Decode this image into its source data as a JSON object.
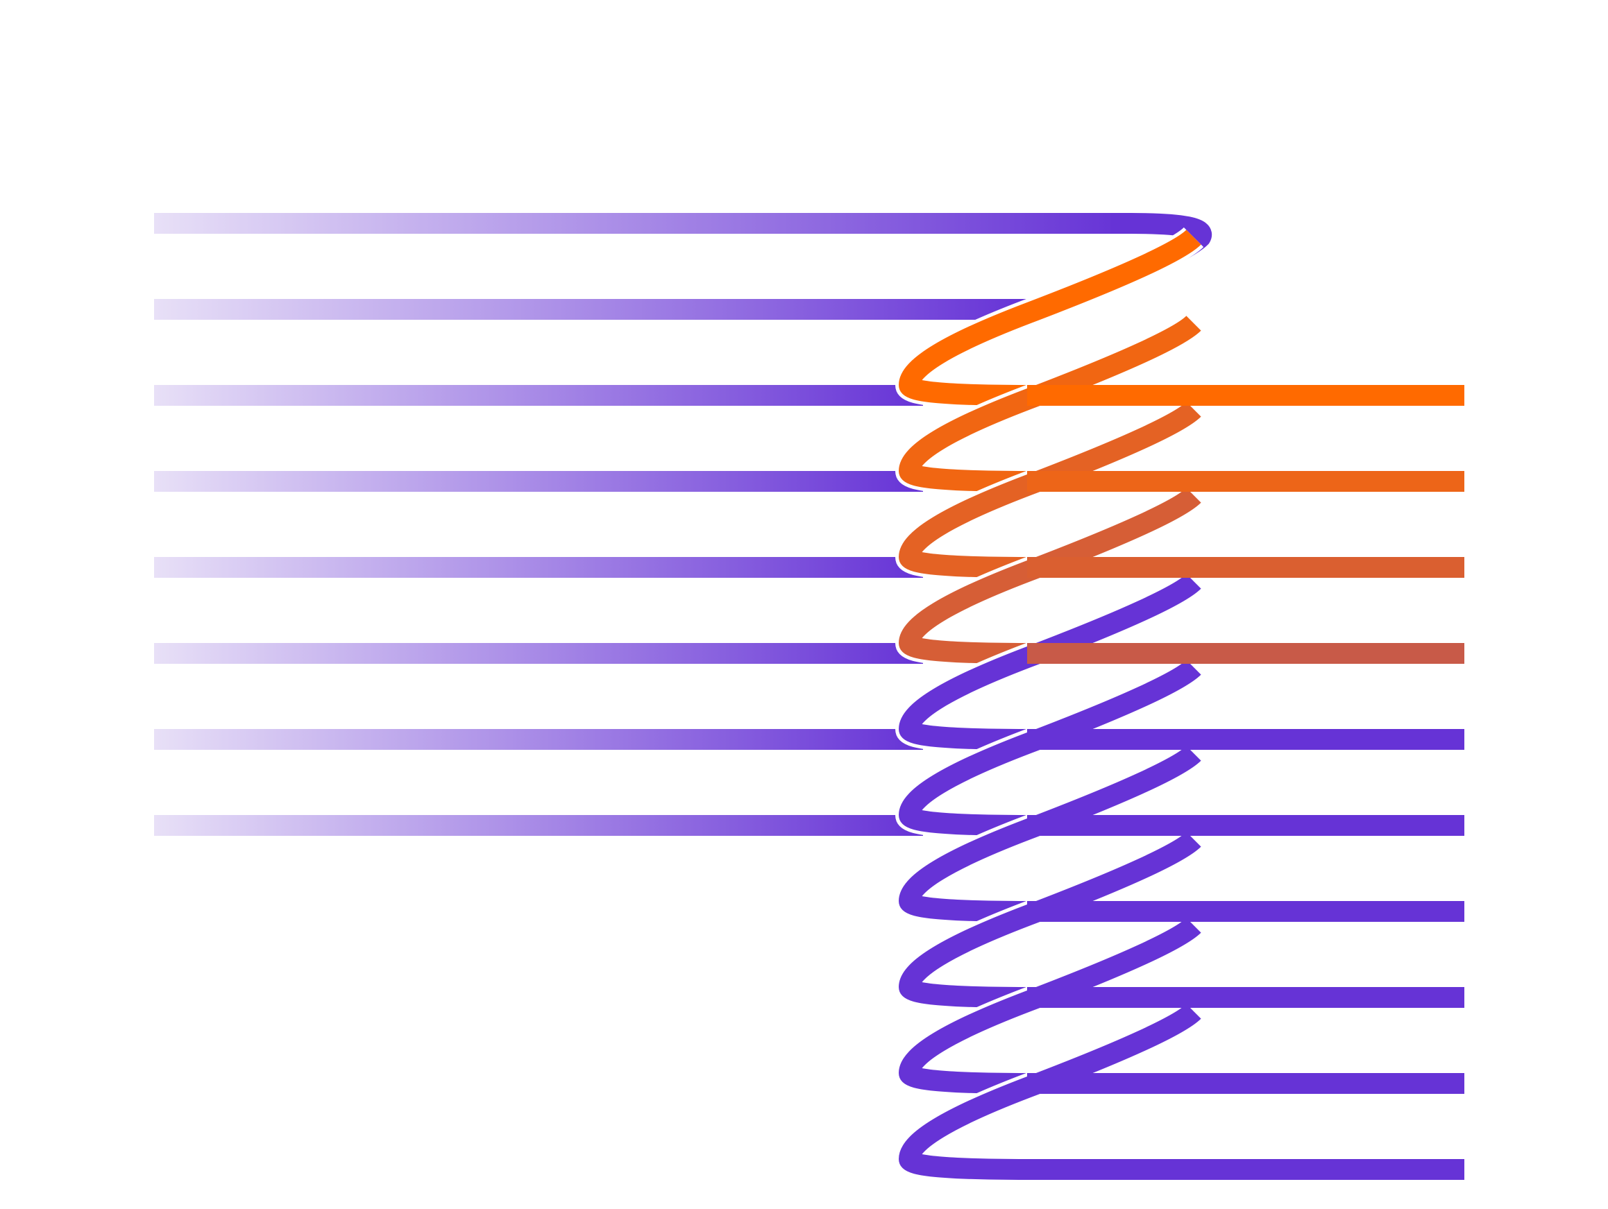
{
  "figure": {
    "left_line_count": 8,
    "right_line_count": 10,
    "highlighted_right_lines": [
      0,
      1,
      2,
      3
    ],
    "colors": {
      "background": "#ffffff",
      "purple": "#6633D6",
      "purple_light": "#E8E0F7",
      "orange": "#FF6A00",
      "orange_end": "#C85A48",
      "gap": "#ffffff"
    }
  }
}
